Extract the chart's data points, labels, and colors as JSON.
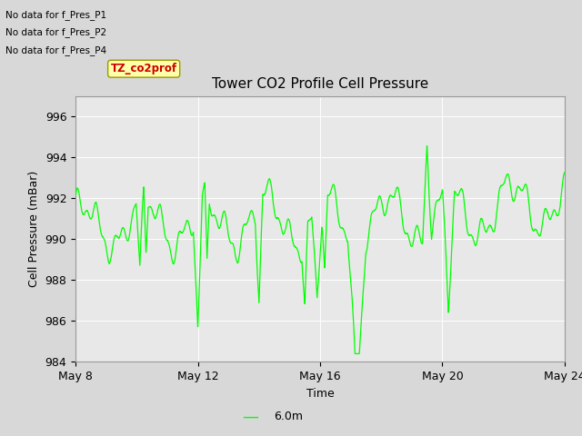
{
  "title": "Tower CO2 Profile Cell Pressure",
  "xlabel": "Time",
  "ylabel": "Cell Pressure (mBar)",
  "ylim": [
    984,
    997
  ],
  "yticks": [
    984,
    986,
    988,
    990,
    992,
    994,
    996
  ],
  "xtick_labels": [
    "May 8",
    "May 12",
    "May 16",
    "May 20",
    "May 24"
  ],
  "xtick_positions": [
    0,
    4,
    8,
    12,
    16
  ],
  "bg_color": "#e8e8e8",
  "line_color": "#00ff00",
  "no_data_texts": [
    "No data for f_Pres_P1",
    "No data for f_Pres_P2",
    "No data for f_Pres_P4"
  ],
  "legend_label": "6.0m",
  "seed": 42
}
